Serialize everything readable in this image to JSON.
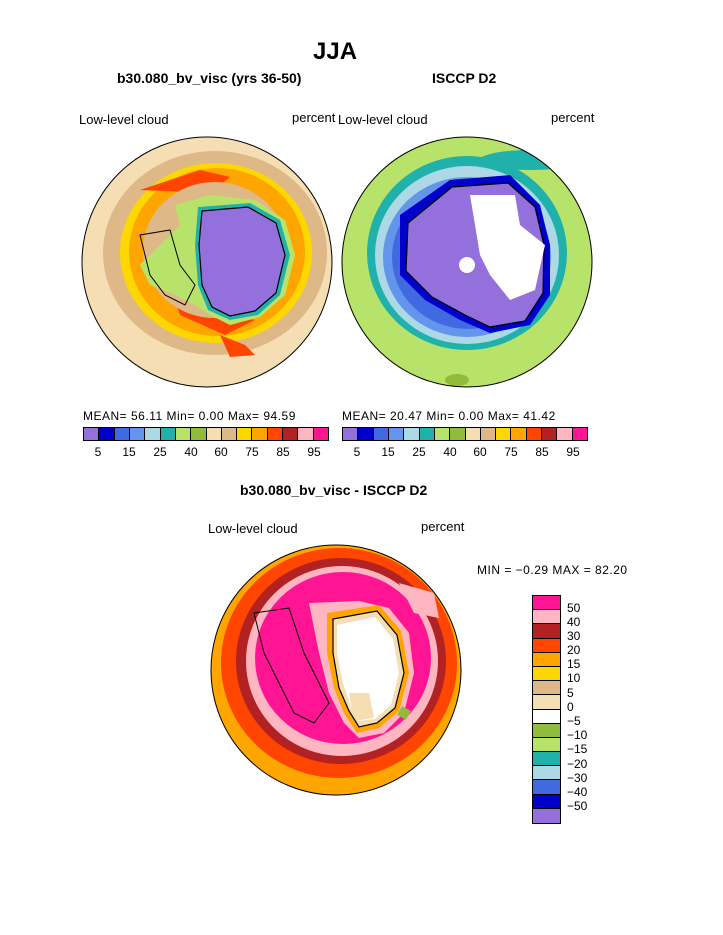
{
  "title": "JJA",
  "left": {
    "subtitle": "b30.080_bv_visc (yrs 36-50)",
    "variable": "Low-level cloud",
    "units": "percent",
    "stats": "MEAN=  56.11  Min=   0.00  Max=  94.59"
  },
  "right": {
    "subtitle": "ISCCP D2",
    "variable": "Low-level cloud",
    "units": "percent",
    "stats": "MEAN=  20.47  Min=   0.00  Max=  41.42"
  },
  "diff": {
    "subtitle": "b30.080_bv_visc - ISCCP D2",
    "variable": "Low-level cloud",
    "units": "percent",
    "stats": "MIN =  −0.29  MAX =  82.20"
  },
  "colors": {
    "purple": "#9370db",
    "navy": "#0000cd",
    "blue": "#4169e1",
    "cornflower": "#6495ed",
    "lightblue": "#add8e6",
    "teal": "#20b2aa",
    "lightgreen": "#b8e36b",
    "olive": "#8fbc3c",
    "wheat": "#f5deb3",
    "tan": "#deb887",
    "gold": "#ffd700",
    "orange": "#ffa500",
    "orangered": "#ff4500",
    "brown": "#b22222",
    "pink": "#ffb6c1",
    "magenta": "#ff1493"
  },
  "colorbar_abs": {
    "colors": [
      "#9370db",
      "#0000cd",
      "#4169e1",
      "#6495ed",
      "#add8e6",
      "#20b2aa",
      "#b8e36b",
      "#8fbc3c",
      "#f5deb3",
      "#deb887",
      "#ffd700",
      "#ffa500",
      "#ff4500",
      "#b22222",
      "#ffb6c1",
      "#ff1493"
    ],
    "tick_labels": [
      "5",
      "15",
      "25",
      "40",
      "60",
      "75",
      "85",
      "95"
    ]
  },
  "colorbar_diff": {
    "colors": [
      "#ff1493",
      "#ffb6c1",
      "#b22222",
      "#ff4500",
      "#ffa500",
      "#ffd700",
      "#deb887",
      "#f5deb3",
      "#8fbc3c",
      "#b8e36b",
      "#20b2aa",
      "#add8e6",
      "#4169e1",
      "#0000cd",
      "#9370db"
    ],
    "tick_labels": [
      "50",
      "40",
      "30",
      "20",
      "15",
      "10",
      "5",
      "0",
      "−5",
      "−10",
      "−15",
      "−20",
      "−30",
      "−40",
      "−50"
    ]
  }
}
